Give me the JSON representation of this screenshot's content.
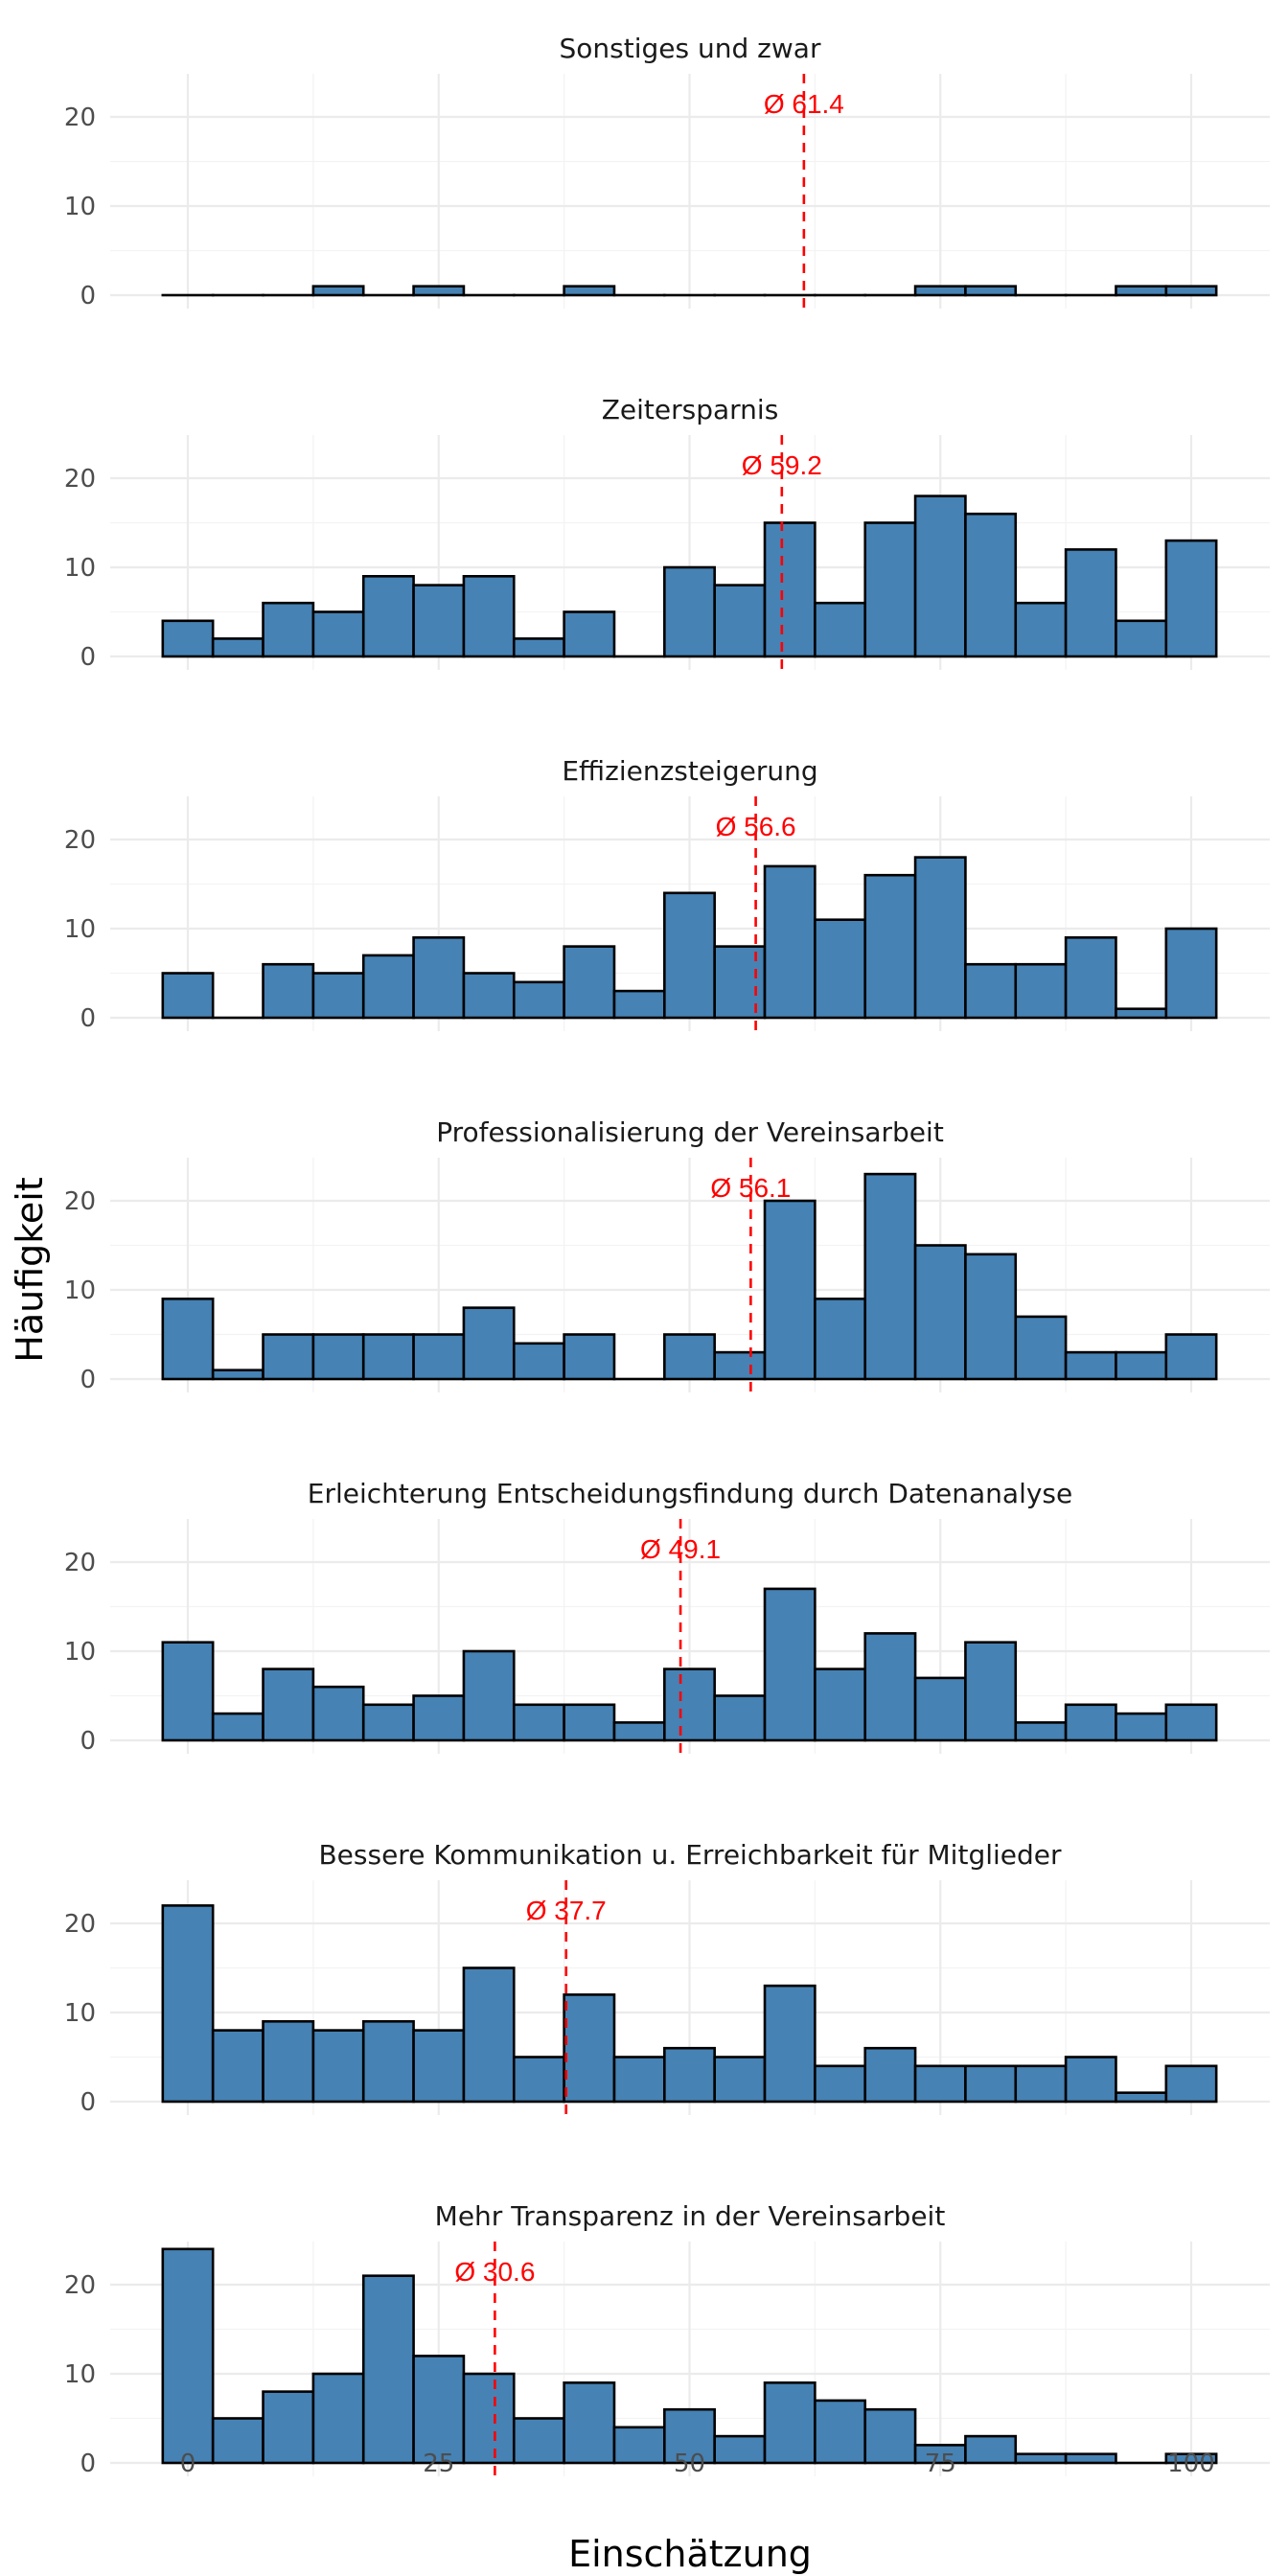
{
  "chart_data": {
    "type": "bar",
    "subtype": "faceted-histogram",
    "xlabel": "Einschätzung",
    "ylabel": "Häufigkeit",
    "xlim": [
      -3,
      103
    ],
    "ylim": [
      0,
      25
    ],
    "x_ticks": [
      0,
      25,
      50,
      75,
      100
    ],
    "y_ticks": [
      0,
      10,
      20
    ],
    "grid": true,
    "bar_color": "#4682b4",
    "mean_line_color": "#ff0000",
    "bin_centers": [
      0,
      5,
      10,
      15,
      20,
      25,
      30,
      35,
      40,
      45,
      50,
      55,
      60,
      65,
      70,
      75,
      80,
      85,
      90,
      95,
      100
    ],
    "bin_width": 5,
    "panels": [
      {
        "title": "Sonstiges und zwar",
        "mean": 61.4,
        "mean_label": "Ø 61.4",
        "counts": [
          0,
          0,
          0,
          1,
          0,
          1,
          0,
          0,
          1,
          0,
          0,
          0,
          0,
          0,
          0,
          1,
          1,
          0,
          0,
          1,
          1
        ]
      },
      {
        "title": "Zeitersparnis",
        "mean": 59.2,
        "mean_label": "Ø 59.2",
        "counts": [
          4,
          2,
          6,
          5,
          9,
          8,
          9,
          2,
          5,
          0,
          10,
          8,
          15,
          6,
          15,
          18,
          16,
          6,
          12,
          4,
          13
        ]
      },
      {
        "title": "Effizienzsteigerung",
        "mean": 56.6,
        "mean_label": "Ø 56.6",
        "counts": [
          5,
          0,
          6,
          5,
          7,
          9,
          5,
          4,
          8,
          3,
          14,
          8,
          17,
          11,
          16,
          18,
          6,
          6,
          9,
          1,
          10
        ]
      },
      {
        "title": "Professionalisierung der Vereinsarbeit",
        "mean": 56.1,
        "mean_label": "Ø 56.1",
        "counts": [
          9,
          1,
          5,
          5,
          5,
          5,
          8,
          4,
          5,
          0,
          5,
          3,
          20,
          9,
          23,
          15,
          14,
          7,
          3,
          3,
          5
        ]
      },
      {
        "title": "Erleichterung Entscheidungsfindung durch Datenanalyse",
        "mean": 49.1,
        "mean_label": "Ø 49.1",
        "counts": [
          11,
          3,
          8,
          6,
          4,
          5,
          10,
          4,
          4,
          2,
          8,
          5,
          17,
          8,
          12,
          7,
          11,
          2,
          4,
          3,
          4
        ]
      },
      {
        "title": "Bessere Kommunikation u. Erreichbarkeit für Mitglieder",
        "mean": 37.7,
        "mean_label": "Ø 37.7",
        "counts": [
          22,
          8,
          9,
          8,
          9,
          8,
          15,
          5,
          12,
          5,
          6,
          5,
          13,
          4,
          6,
          4,
          4,
          4,
          5,
          1,
          4
        ]
      },
      {
        "title": "Mehr Transparenz in der Vereinsarbeit",
        "mean": 30.6,
        "mean_label": "Ø 30.6",
        "counts": [
          24,
          5,
          8,
          10,
          21,
          12,
          10,
          5,
          9,
          4,
          6,
          3,
          9,
          7,
          6,
          2,
          3,
          1,
          1,
          0,
          1
        ]
      }
    ]
  }
}
